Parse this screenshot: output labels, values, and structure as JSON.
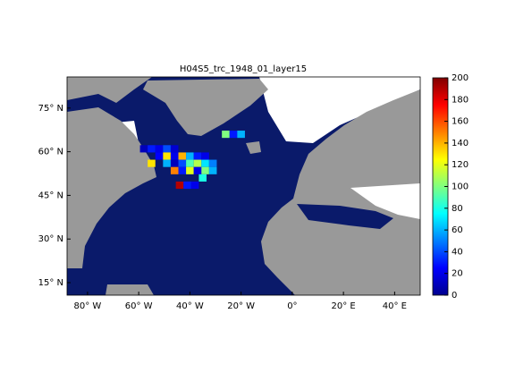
{
  "chart_data": {
    "type": "heatmap",
    "title": "H04S5_trc_1948_01_layer15",
    "colormap": "jet",
    "xlim": [
      -88,
      50
    ],
    "ylim": [
      10.7,
      85.7
    ],
    "xticks": [
      {
        "value": -80,
        "label": "80° W"
      },
      {
        "value": -60,
        "label": "60° W"
      },
      {
        "value": -40,
        "label": "40° W"
      },
      {
        "value": -20,
        "label": "20° W"
      },
      {
        "value": 0,
        "label": "0°"
      },
      {
        "value": 20,
        "label": "20° E"
      },
      {
        "value": 40,
        "label": "40° E"
      }
    ],
    "yticks": [
      {
        "value": 15,
        "label": "15° N"
      },
      {
        "value": 30,
        "label": "30° N"
      },
      {
        "value": 45,
        "label": "45° N"
      },
      {
        "value": 60,
        "label": "60° N"
      },
      {
        "value": 75,
        "label": "75° N"
      }
    ],
    "clim": [
      0,
      200
    ],
    "cticks": [
      0,
      20,
      40,
      60,
      80,
      100,
      120,
      140,
      160,
      180,
      200
    ],
    "x": [
      -58,
      -55,
      -52,
      -49,
      -46,
      -52,
      -49,
      -46,
      -43,
      -40,
      -37,
      -34,
      -55,
      -49,
      -46,
      -43,
      -40,
      -37,
      -34,
      -31,
      -46,
      -43,
      -40,
      -37,
      -34,
      -31,
      -44,
      -41,
      -38,
      -35,
      -26,
      -23,
      -20
    ],
    "y": [
      61,
      61,
      61,
      61,
      61,
      58.5,
      58.5,
      58.5,
      58.5,
      58.5,
      58.5,
      58.5,
      56,
      56,
      56,
      56,
      56,
      56,
      56,
      56,
      53.5,
      53.5,
      53.5,
      53.5,
      53.5,
      53.5,
      48.5,
      48.5,
      48.5,
      51,
      66,
      66,
      66
    ],
    "values": [
      10,
      30,
      20,
      40,
      15,
      25,
      130,
      20,
      140,
      60,
      30,
      20,
      130,
      60,
      10,
      40,
      90,
      110,
      70,
      50,
      150,
      30,
      120,
      20,
      100,
      60,
      190,
      30,
      20,
      80,
      100,
      30,
      60
    ]
  }
}
